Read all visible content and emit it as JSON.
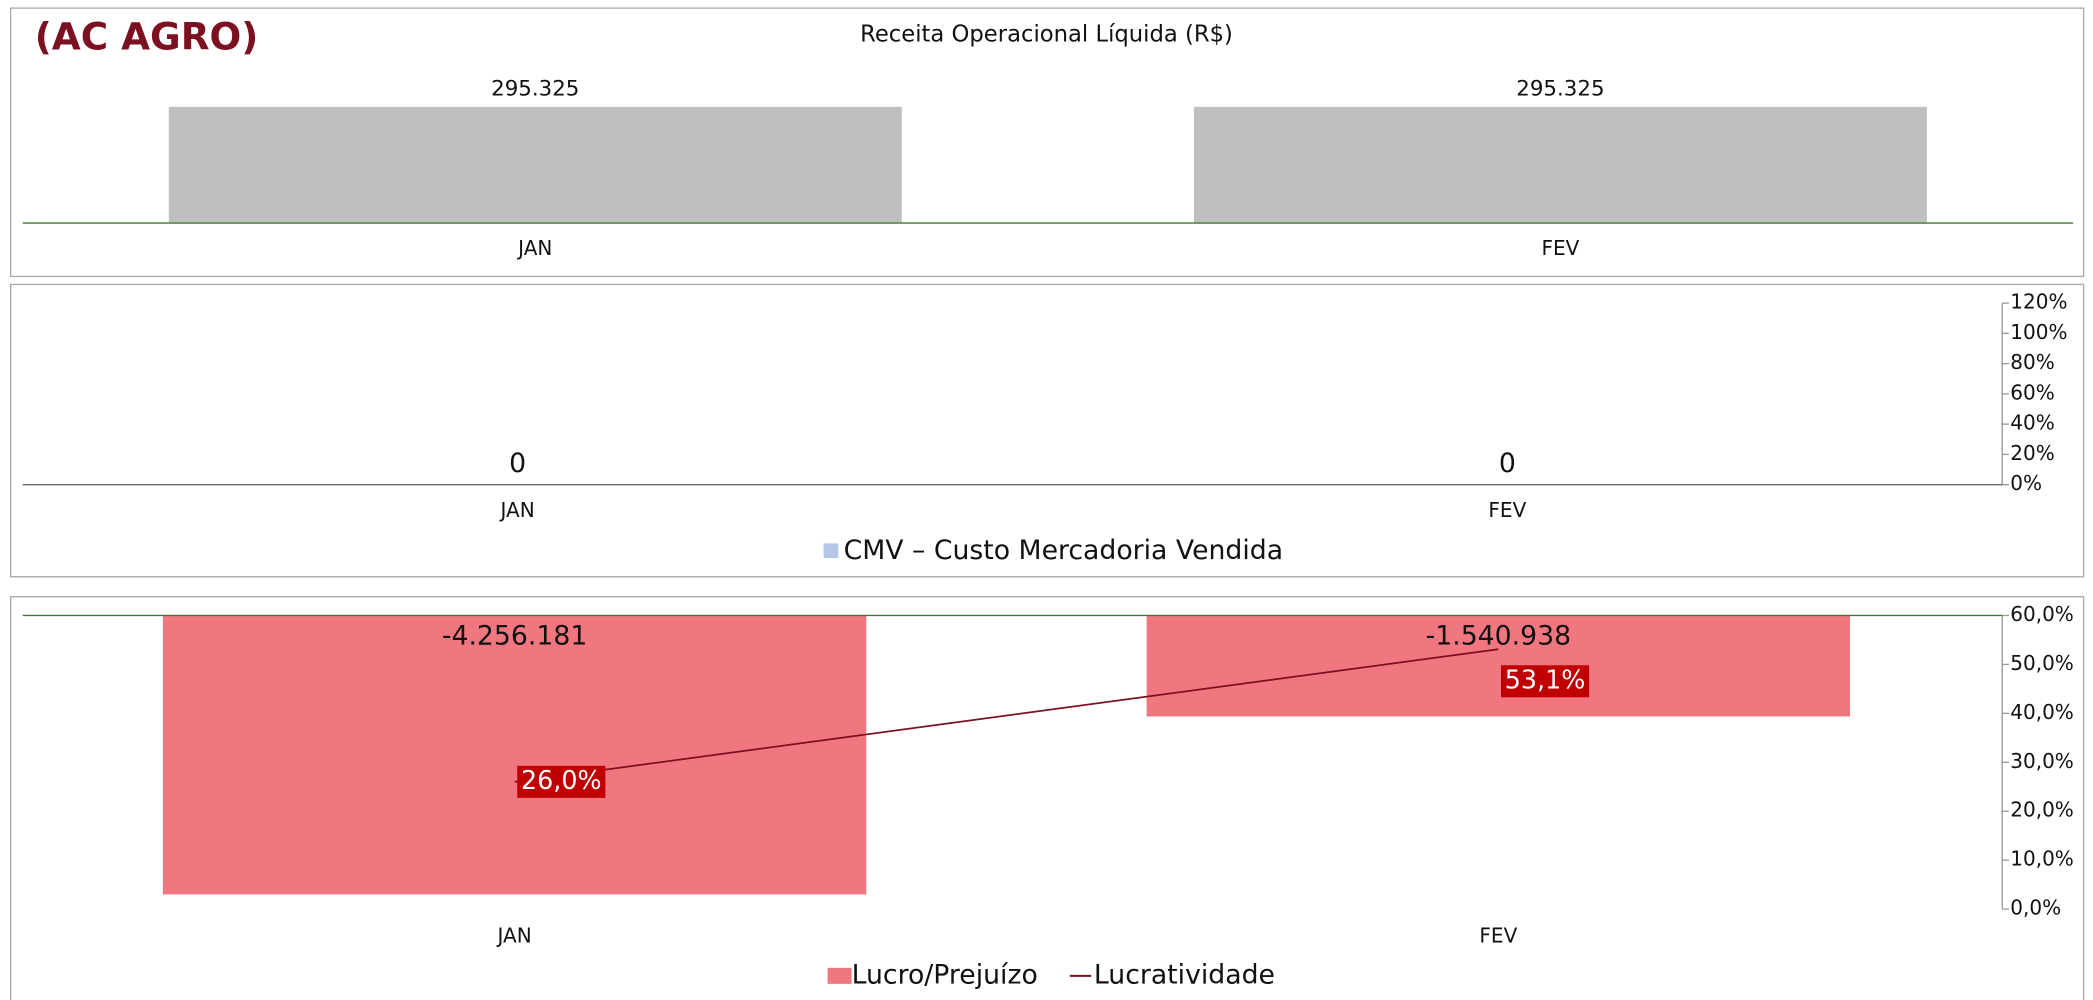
{
  "brand": "(AC AGRO)",
  "chart_data": [
    {
      "type": "bar",
      "title": "Receita Operacional Líquida (R$)",
      "categories": [
        "JAN",
        "FEV"
      ],
      "values": [
        295325,
        295325
      ],
      "value_labels": [
        "295.325",
        "295.325"
      ],
      "color": "#bfbfbf"
    },
    {
      "type": "bar",
      "categories": [
        "JAN",
        "FEV"
      ],
      "series": [
        {
          "name": "CMV – Custo Mercadoria Vendida",
          "color": "#b4c7e7",
          "values": [
            0,
            0
          ]
        }
      ],
      "y2lim": [
        0,
        120
      ],
      "y2ticks": [
        {
          "value": 0,
          "label": "0%"
        },
        {
          "value": 20,
          "label": "20%"
        },
        {
          "value": 40,
          "label": "40%"
        },
        {
          "value": 60,
          "label": "60%"
        },
        {
          "value": 80,
          "label": "80%"
        },
        {
          "value": 100,
          "label": "100%"
        },
        {
          "value": 120,
          "label": "120%"
        }
      ],
      "legend": "bottom"
    },
    {
      "type": "combo",
      "categories": [
        "JAN",
        "FEV"
      ],
      "series": [
        {
          "name": "Lucro/Prejuízo",
          "type": "bar",
          "color": "#f07680",
          "values": [
            -4256181,
            -1540938
          ],
          "value_labels": [
            "-4.256.181",
            "-1.540.938"
          ]
        },
        {
          "name": "Lucratividade",
          "type": "line",
          "axis": "y2",
          "color": "#7b1020",
          "values": [
            26.0,
            53.1
          ],
          "value_labels": [
            "26,0%",
            "53,1%"
          ]
        }
      ],
      "y2lim": [
        0,
        60
      ],
      "y2ticks": [
        {
          "value": 0,
          "label": "0,0%"
        },
        {
          "value": 10,
          "label": "10,0%"
        },
        {
          "value": 20,
          "label": "20,0%"
        },
        {
          "value": 30,
          "label": "30,0%"
        },
        {
          "value": 40,
          "label": "40,0%"
        },
        {
          "value": 50,
          "label": "50,0%"
        },
        {
          "value": 60,
          "label": "60,0%"
        }
      ],
      "legend": "bottom"
    }
  ]
}
